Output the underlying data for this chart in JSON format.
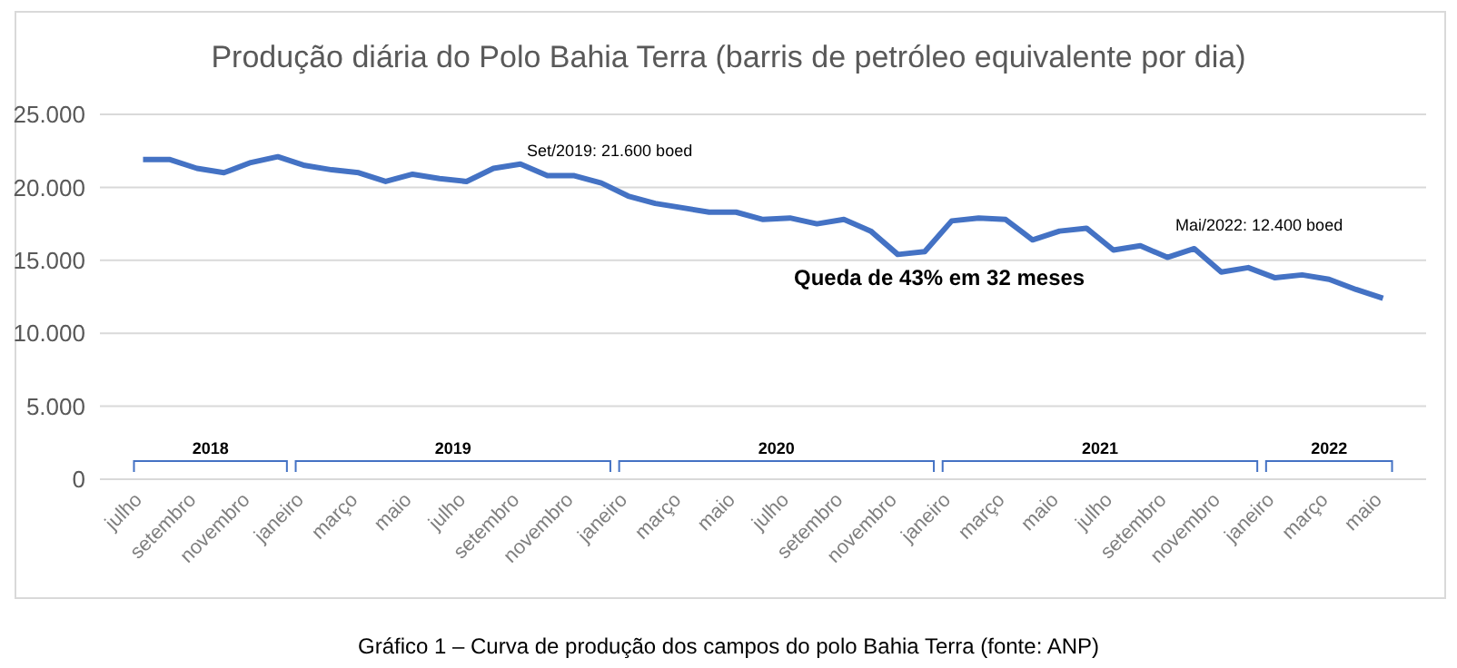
{
  "chart_data": {
    "type": "line",
    "title": "Produção diária do Polo Bahia Terra (barris de petróleo equivalente por dia)",
    "categories": [
      "julho",
      null,
      "setembro",
      null,
      "novembro",
      null,
      "janeiro",
      null,
      "março",
      null,
      "maio",
      null,
      "julho",
      null,
      "setembro",
      null,
      "novembro",
      null,
      "janeiro",
      null,
      "março",
      null,
      "maio",
      null,
      "julho",
      null,
      "setembro",
      null,
      "novembro",
      null,
      "janeiro",
      null,
      "março",
      null,
      "maio",
      null,
      "julho",
      null,
      "setembro",
      null,
      "novembro",
      null,
      "janeiro",
      null,
      "março",
      null,
      "maio"
    ],
    "series": [
      {
        "color": "#4472c4",
        "values": [
          21900,
          21900,
          21300,
          21000,
          21700,
          22100,
          21500,
          21200,
          21000,
          20400,
          20900,
          20600,
          20400,
          21300,
          21600,
          20800,
          20800,
          20300,
          19400,
          18900,
          18600,
          18300,
          18300,
          17800,
          17900,
          17500,
          17800,
          17000,
          15400,
          15600,
          17700,
          17900,
          17800,
          16400,
          17000,
          17200,
          15700,
          16000,
          15200,
          15800,
          14200,
          14500,
          13800,
          14000,
          13700,
          13000,
          12400
        ]
      }
    ],
    "ylim": [
      0,
      25000
    ],
    "yticks": [
      0,
      {
        "value": 5000,
        "label": "5.000"
      },
      {
        "value": 10000,
        "label": "10.000"
      },
      {
        "value": 15000,
        "label": "15.000"
      },
      {
        "value": 20000,
        "label": "20.000"
      },
      {
        "value": 25000,
        "label": "25.000"
      }
    ],
    "grid": "y",
    "marker": "none",
    "line_style": "solid",
    "annotations": [
      "Set/2019: 21.600 boed",
      "Mai/2022: 12.400 boed",
      "Queda de 43% em 32 meses",
      "2018",
      "2019",
      "2020",
      "2021",
      "2022",
      "Gráfico 1 – Curva de produção dos campos do polo Bahia Terra (fonte: ANP)"
    ]
  }
}
